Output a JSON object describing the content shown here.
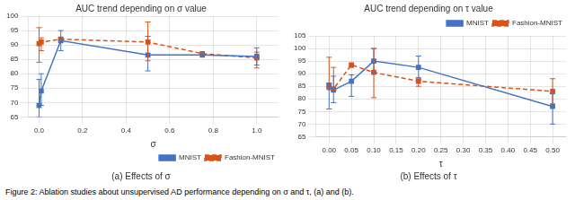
{
  "chart_data": [
    {
      "type": "line",
      "title": "AUC trend depending on σ value",
      "x_label": "σ",
      "caption": "(a) Effects of σ",
      "x": [
        0.0,
        0.01,
        0.1,
        0.5,
        0.75,
        1.0
      ],
      "series": [
        {
          "name": "MNIST",
          "color": "#4472C4",
          "marker": "square",
          "line_style": "solid",
          "values": [
            69.0,
            74.0,
            91.5,
            86.5,
            86.5,
            86.0
          ],
          "error_lo": [
            4.0,
            5.0,
            3.5,
            5.5,
            0.0,
            3.0
          ],
          "error_hi": [
            9.0,
            6.0,
            3.5,
            6.5,
            0.0,
            3.0
          ]
        },
        {
          "name": "Fashion-MNIST",
          "color": "#D95319",
          "marker": "square",
          "line_style": "dashed",
          "values": [
            90.5,
            91.0,
            92.0,
            91.0,
            87.0,
            85.5
          ],
          "error_lo": [
            6.5,
            3.0,
            0.5,
            6.5,
            0.0,
            3.5
          ],
          "error_hi": [
            5.5,
            1.5,
            0.5,
            7.0,
            0.0,
            2.0
          ]
        }
      ],
      "xlim": [
        -0.05,
        1.1
      ],
      "xticks": [
        {
          "value": 0,
          "label": "0.0"
        },
        0.2,
        0.4,
        0.6,
        0.8,
        {
          "value": 1,
          "label": "1.0"
        }
      ],
      "ylim": [
        65,
        100
      ],
      "yticks": [
        65,
        70,
        75,
        80,
        85,
        90,
        95,
        100
      ],
      "grid": true,
      "legend": "lower right"
    },
    {
      "type": "line",
      "title": "AUC trend depending on τ value",
      "x_label": "τ",
      "caption": "(b) Effects of τ",
      "x": [
        0.0,
        0.01,
        0.05,
        0.1,
        0.2,
        0.5
      ],
      "series": [
        {
          "name": "MNIST",
          "color": "#4472C4",
          "marker": "square",
          "line_style": "solid",
          "values": [
            85.5,
            83.5,
            87.0,
            95.0,
            92.5,
            77.0
          ],
          "error_lo": [
            9.5,
            5.0,
            6.0,
            4.5,
            4.0,
            7.0
          ],
          "error_hi": [
            0.5,
            5.5,
            2.5,
            5.0,
            4.5,
            5.0
          ]
        },
        {
          "name": "Fashion-MNIST",
          "color": "#D95319",
          "marker": "square",
          "line_style": "dashed",
          "values": [
            84.5,
            84.0,
            93.5,
            90.5,
            87.0,
            83.0
          ],
          "error_lo": [
            0.0,
            0.5,
            1.0,
            10.0,
            2.0,
            5.0
          ],
          "error_hi": [
            12.0,
            8.5,
            0.5,
            9.5,
            1.0,
            5.0
          ]
        }
      ],
      "xlim": [
        -0.03,
        0.53
      ],
      "xticks": [
        {
          "value": 0,
          "label": "0.00"
        },
        0.05,
        {
          "value": 0.1,
          "label": "0.10"
        },
        0.15,
        {
          "value": 0.2,
          "label": "0.20"
        },
        0.25,
        {
          "value": 0.3,
          "label": "0.30"
        },
        0.35,
        {
          "value": 0.4,
          "label": "0.40"
        },
        0.45,
        {
          "value": 0.5,
          "label": "0.50"
        }
      ],
      "ylim": [
        65,
        105
      ],
      "yticks": [
        65,
        70,
        75,
        80,
        85,
        90,
        95,
        100,
        105
      ],
      "grid": true,
      "legend": "upper right"
    }
  ],
  "caption": "Figure 2: Ablation studies about unsupervised AD performance depending on σ and τ, (a) and (b)."
}
